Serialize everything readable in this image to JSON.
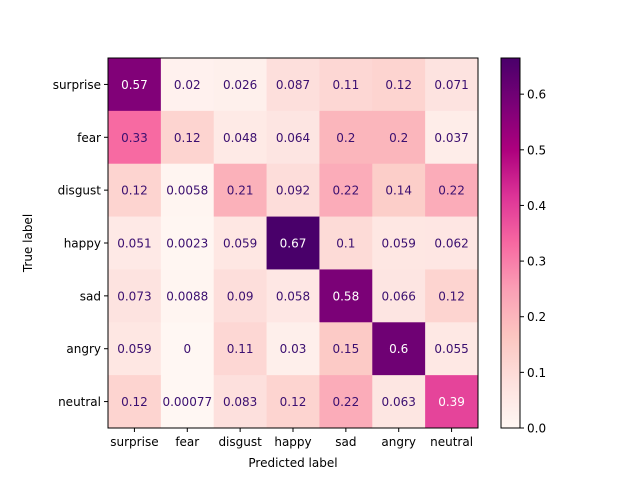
{
  "chart_data": {
    "type": "heatmap",
    "title": "",
    "xlabel": "Predicted label",
    "ylabel": "True label",
    "x_categories": [
      "surprise",
      "fear",
      "disgust",
      "happy",
      "sad",
      "angry",
      "neutral"
    ],
    "y_categories": [
      "surprise",
      "fear",
      "disgust",
      "happy",
      "sad",
      "angry",
      "neutral"
    ],
    "matrix": [
      [
        0.57,
        0.02,
        0.026,
        0.087,
        0.11,
        0.12,
        0.071
      ],
      [
        0.33,
        0.12,
        0.048,
        0.064,
        0.2,
        0.2,
        0.037
      ],
      [
        0.12,
        0.0058,
        0.21,
        0.092,
        0.22,
        0.14,
        0.22
      ],
      [
        0.051,
        0.0023,
        0.059,
        0.67,
        0.1,
        0.059,
        0.062
      ],
      [
        0.073,
        0.0088,
        0.09,
        0.058,
        0.58,
        0.066,
        0.12
      ],
      [
        0.059,
        0,
        0.11,
        0.03,
        0.15,
        0.6,
        0.055
      ],
      [
        0.12,
        0.00077,
        0.083,
        0.12,
        0.22,
        0.063,
        0.39
      ]
    ],
    "colormap": "RdPu",
    "vmin": 0,
    "vmax": 0.665,
    "colorbar_ticks": [
      "0.0",
      "0.1",
      "0.2",
      "0.3",
      "0.4",
      "0.5",
      "0.6"
    ]
  }
}
